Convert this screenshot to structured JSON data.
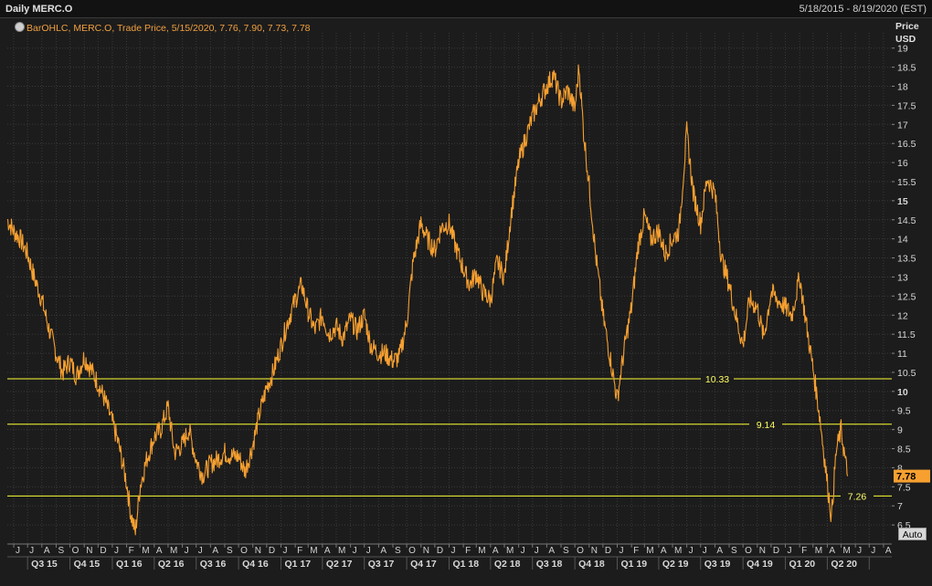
{
  "header": {
    "title": "Daily MERC.O",
    "date_range": "5/18/2015 - 8/19/2020 (EST)"
  },
  "legend": {
    "text": "BarOHLC, MERC.O, Trade Price,  5/15/2020, 7.76, 7.90, 7.73, 7.78",
    "icon": "clock-icon"
  },
  "price_axis": {
    "label_line1": "Price",
    "label_line2": "USD"
  },
  "auto_button": {
    "label": "Auto"
  },
  "colors": {
    "background": "#1c1c1c",
    "series": "#f7a030",
    "level_lines": "#ffff33",
    "grid": "#3a3a3a",
    "last_price_badge": "#f7a030"
  },
  "chart_data": {
    "type": "line",
    "title": "",
    "xlabel": "",
    "ylabel": "Price USD",
    "ylim": [
      6.0,
      19.4
    ],
    "grid": true,
    "y_ticks": [
      "6.5",
      "7",
      "7.5",
      "8",
      "8.5",
      "9",
      "9.5",
      "10",
      "10.5",
      "11",
      "11.5",
      "12",
      "12.5",
      "13",
      "13.5",
      "14",
      "14.5",
      "15",
      "15.5",
      "16",
      "16.5",
      "17",
      "17.5",
      "18",
      "18.5",
      "19"
    ],
    "y_ticks_bold": [
      "10",
      "15"
    ],
    "x_month_labels": [
      "J",
      "J",
      "A",
      "S",
      "O",
      "N",
      "D",
      "J",
      "F",
      "M",
      "A",
      "M",
      "J",
      "J",
      "A",
      "S",
      "O",
      "N",
      "D",
      "J",
      "F",
      "M",
      "A",
      "M",
      "J",
      "J",
      "A",
      "S",
      "O",
      "N",
      "D",
      "J",
      "F",
      "M",
      "A",
      "M",
      "J",
      "J",
      "A",
      "S",
      "O",
      "N",
      "D",
      "J",
      "F",
      "M",
      "A",
      "M",
      "J",
      "J",
      "A",
      "S",
      "O",
      "N",
      "D",
      "J",
      "F",
      "M",
      "A",
      "M",
      "J",
      "J",
      "A"
    ],
    "x_quarter_labels": [
      "Q3 15",
      "Q4 15",
      "Q1 16",
      "Q2 16",
      "Q3 16",
      "Q4 16",
      "Q1 17",
      "Q2 17",
      "Q3 17",
      "Q4 17",
      "Q1 18",
      "Q2 18",
      "Q3 18",
      "Q4 18",
      "Q1 19",
      "Q2 19",
      "Q3 19",
      "Q4 19",
      "Q1 20",
      "Q2 20"
    ],
    "x_start": "2015-05-18",
    "x_end": "2020-08-19",
    "horizontal_levels": [
      {
        "value": 10.33,
        "label": "10.33"
      },
      {
        "value": 9.14,
        "label": "9.14"
      },
      {
        "value": 7.26,
        "label": "7.26"
      }
    ],
    "last_price": {
      "value": 7.78,
      "label": "7.78"
    },
    "series": [
      {
        "name": "MERC.O",
        "points": [
          [
            "2015-05-18",
            14.5
          ],
          [
            "2015-06-01",
            14.2
          ],
          [
            "2015-06-15",
            14.0
          ],
          [
            "2015-07-01",
            13.6
          ],
          [
            "2015-07-15",
            13.0
          ],
          [
            "2015-08-01",
            12.4
          ],
          [
            "2015-08-15",
            11.7
          ],
          [
            "2015-09-01",
            11.0
          ],
          [
            "2015-09-15",
            10.5
          ],
          [
            "2015-10-01",
            10.8
          ],
          [
            "2015-10-15",
            10.4
          ],
          [
            "2015-11-01",
            10.9
          ],
          [
            "2015-11-15",
            10.6
          ],
          [
            "2015-12-01",
            10.2
          ],
          [
            "2015-12-15",
            9.8
          ],
          [
            "2016-01-01",
            9.2
          ],
          [
            "2016-01-15",
            8.6
          ],
          [
            "2016-02-01",
            7.6
          ],
          [
            "2016-02-10",
            6.8
          ],
          [
            "2016-02-20",
            6.3
          ],
          [
            "2016-03-01",
            7.5
          ],
          [
            "2016-03-15",
            8.2
          ],
          [
            "2016-04-01",
            8.8
          ],
          [
            "2016-04-15",
            9.0
          ],
          [
            "2016-05-01",
            9.6
          ],
          [
            "2016-05-15",
            8.4
          ],
          [
            "2016-06-01",
            8.6
          ],
          [
            "2016-06-15",
            9.0
          ],
          [
            "2016-07-01",
            8.2
          ],
          [
            "2016-07-15",
            7.8
          ],
          [
            "2016-08-01",
            8.1
          ],
          [
            "2016-08-15",
            8.2
          ],
          [
            "2016-09-01",
            8.4
          ],
          [
            "2016-09-15",
            8.3
          ],
          [
            "2016-10-01",
            8.3
          ],
          [
            "2016-10-15",
            7.9
          ],
          [
            "2016-11-01",
            8.6
          ],
          [
            "2016-11-15",
            9.4
          ],
          [
            "2016-12-01",
            10.1
          ],
          [
            "2016-12-15",
            10.5
          ],
          [
            "2017-01-01",
            11.2
          ],
          [
            "2017-01-15",
            11.8
          ],
          [
            "2017-02-01",
            12.4
          ],
          [
            "2017-02-15",
            12.8
          ],
          [
            "2017-03-01",
            12.1
          ],
          [
            "2017-03-15",
            11.6
          ],
          [
            "2017-04-01",
            12.0
          ],
          [
            "2017-04-15",
            11.5
          ],
          [
            "2017-05-01",
            11.7
          ],
          [
            "2017-05-15",
            11.4
          ],
          [
            "2017-06-01",
            11.9
          ],
          [
            "2017-06-15",
            11.6
          ],
          [
            "2017-07-01",
            12.0
          ],
          [
            "2017-07-15",
            11.2
          ],
          [
            "2017-08-01",
            11.0
          ],
          [
            "2017-08-15",
            11.0
          ],
          [
            "2017-09-01",
            10.8
          ],
          [
            "2017-09-15",
            10.9
          ],
          [
            "2017-10-01",
            11.8
          ],
          [
            "2017-10-15",
            13.4
          ],
          [
            "2017-11-01",
            14.4
          ],
          [
            "2017-11-15",
            14.0
          ],
          [
            "2017-12-01",
            13.7
          ],
          [
            "2017-12-15",
            14.3
          ],
          [
            "2018-01-01",
            14.4
          ],
          [
            "2018-01-15",
            13.8
          ],
          [
            "2018-02-01",
            13.2
          ],
          [
            "2018-02-15",
            12.8
          ],
          [
            "2018-03-01",
            13.1
          ],
          [
            "2018-03-15",
            12.6
          ],
          [
            "2018-04-01",
            12.4
          ],
          [
            "2018-04-15",
            13.4
          ],
          [
            "2018-05-01",
            13.0
          ],
          [
            "2018-05-15",
            14.6
          ],
          [
            "2018-06-01",
            16.0
          ],
          [
            "2018-06-15",
            16.6
          ],
          [
            "2018-07-01",
            17.2
          ],
          [
            "2018-07-15",
            17.6
          ],
          [
            "2018-08-01",
            18.0
          ],
          [
            "2018-08-15",
            18.3
          ],
          [
            "2018-09-01",
            17.6
          ],
          [
            "2018-09-15",
            17.9
          ],
          [
            "2018-10-01",
            17.4
          ],
          [
            "2018-10-10",
            18.5
          ],
          [
            "2018-10-20",
            16.8
          ],
          [
            "2018-11-01",
            15.4
          ],
          [
            "2018-11-15",
            13.6
          ],
          [
            "2018-12-01",
            12.0
          ],
          [
            "2018-12-15",
            11.0
          ],
          [
            "2019-01-01",
            9.8
          ],
          [
            "2019-01-10",
            10.6
          ],
          [
            "2019-01-20",
            11.4
          ],
          [
            "2019-02-01",
            12.2
          ],
          [
            "2019-02-15",
            13.8
          ],
          [
            "2019-03-01",
            14.6
          ],
          [
            "2019-03-15",
            14.0
          ],
          [
            "2019-04-01",
            14.2
          ],
          [
            "2019-04-15",
            13.6
          ],
          [
            "2019-05-01",
            14.0
          ],
          [
            "2019-05-15",
            14.2
          ],
          [
            "2019-06-01",
            16.8
          ],
          [
            "2019-06-15",
            15.2
          ],
          [
            "2019-07-01",
            14.4
          ],
          [
            "2019-07-15",
            15.6
          ],
          [
            "2019-08-01",
            15.2
          ],
          [
            "2019-08-15",
            13.5
          ],
          [
            "2019-09-01",
            12.8
          ],
          [
            "2019-09-15",
            12.0
          ],
          [
            "2019-10-01",
            11.2
          ],
          [
            "2019-10-15",
            12.4
          ],
          [
            "2019-11-01",
            12.2
          ],
          [
            "2019-11-15",
            11.4
          ],
          [
            "2019-12-01",
            12.6
          ],
          [
            "2019-12-15",
            12.4
          ],
          [
            "2020-01-01",
            12.2
          ],
          [
            "2020-01-15",
            12.0
          ],
          [
            "2020-02-01",
            13.0
          ],
          [
            "2020-02-15",
            11.8
          ],
          [
            "2020-03-01",
            10.6
          ],
          [
            "2020-03-15",
            9.4
          ],
          [
            "2020-04-01",
            7.6
          ],
          [
            "2020-04-10",
            6.7
          ],
          [
            "2020-04-20",
            8.4
          ],
          [
            "2020-05-01",
            9.0
          ],
          [
            "2020-05-10",
            8.2
          ],
          [
            "2020-05-15",
            7.78
          ]
        ]
      }
    ]
  }
}
